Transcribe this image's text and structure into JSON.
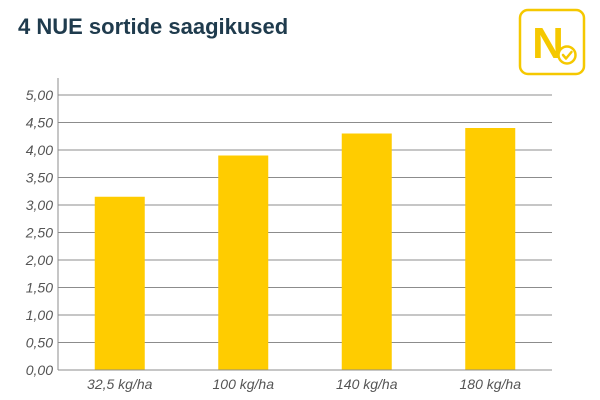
{
  "header": {
    "title": "4 NUE sortide saagikused"
  },
  "logo": {
    "letter": "N",
    "icon": "checkmark-badge-icon",
    "color": "#f5c800"
  },
  "colors": {
    "bar": "#ffcc00",
    "grid": "#8c8c8c",
    "title": "#1f3b4d"
  },
  "chart_data": {
    "type": "bar",
    "title": "4 NUE sortide saagikused",
    "xlabel": "",
    "ylabel": "",
    "categories": [
      "32,5 kg/ha",
      "100 kg/ha",
      "140 kg/ha",
      "180 kg/ha"
    ],
    "values": [
      3.15,
      3.9,
      4.3,
      4.4
    ],
    "ylim": [
      0,
      5
    ],
    "yticks": [
      "0,00",
      "0,50",
      "1,00",
      "1,50",
      "2,00",
      "2,50",
      "3,00",
      "3,50",
      "4,00",
      "4,50",
      "5,00"
    ],
    "grid": true,
    "legend": "none"
  }
}
